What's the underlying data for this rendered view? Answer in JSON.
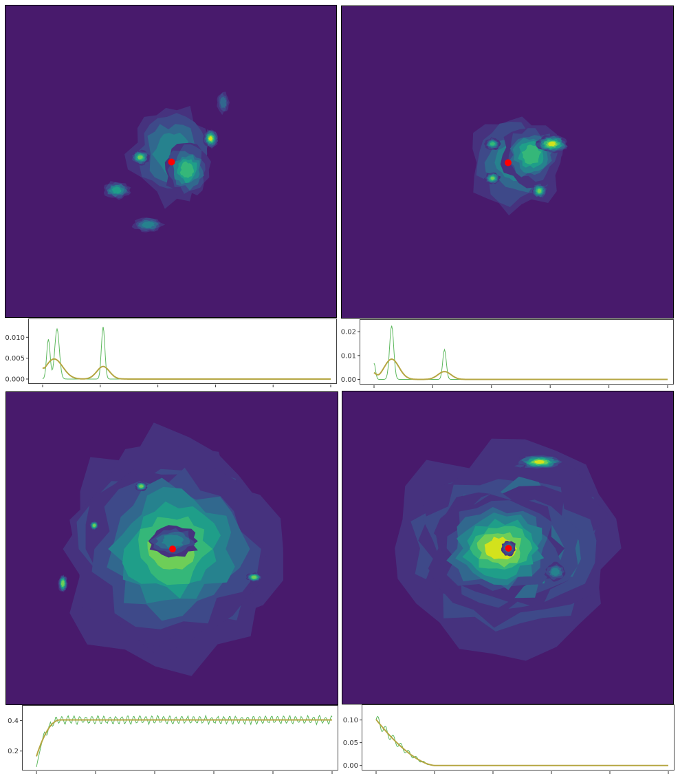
{
  "colors": {
    "background": "#481a6c",
    "levels": [
      "#481a6c",
      "#46327e",
      "#3e4989",
      "#31688e",
      "#26828e",
      "#1f9e89",
      "#35b779",
      "#6ece58",
      "#d3e21c"
    ],
    "center_marker": "#ff0000",
    "raw_line": "#5cb85c",
    "smooth_line": "#b5a642"
  },
  "chart_data": [
    {
      "type": "heatmap",
      "panel": "top-left",
      "contour_levels": 8,
      "center_marker": true,
      "blobs": [
        {
          "x": 0.0,
          "y": 0.05,
          "w": 0.55,
          "h": 0.65,
          "level": 4
        },
        {
          "x": 0.1,
          "y": -0.05,
          "w": 0.3,
          "h": 0.35,
          "level": 6
        },
        {
          "x": 0.25,
          "y": 0.15,
          "w": 0.1,
          "h": 0.12,
          "level": 8
        },
        {
          "x": -0.2,
          "y": 0.03,
          "w": 0.12,
          "h": 0.1,
          "level": 7
        },
        {
          "x": -0.35,
          "y": -0.18,
          "w": 0.18,
          "h": 0.12,
          "level": 5
        },
        {
          "x": -0.15,
          "y": -0.4,
          "w": 0.2,
          "h": 0.1,
          "level": 4
        },
        {
          "x": 0.33,
          "y": 0.38,
          "w": 0.08,
          "h": 0.15,
          "level": 3
        }
      ]
    },
    {
      "type": "line",
      "panel": "top-left-profile",
      "ylim": [
        -0.0005,
        0.0135
      ],
      "yticks": [
        0.0,
        0.005,
        0.01
      ],
      "ytick_labels": [
        "0.000",
        "0.005",
        "0.010"
      ],
      "xlim": [
        0,
        100
      ],
      "xticks": [
        0,
        20,
        40,
        60,
        80,
        100
      ],
      "peaks_raw": [
        [
          2,
          0.0095,
          0.6
        ],
        [
          5,
          0.012,
          0.8
        ],
        [
          21,
          0.0125,
          0.6
        ]
      ],
      "peaks_smooth": [
        [
          4,
          0.0048,
          3.0
        ],
        [
          21,
          0.003,
          2.2
        ]
      ],
      "baseline_smooth": 0.0027
    },
    {
      "type": "heatmap",
      "panel": "top-right",
      "contour_levels": 8,
      "center_marker": true,
      "blobs": [
        {
          "x": 0.05,
          "y": 0.0,
          "w": 0.6,
          "h": 0.65,
          "level": 4
        },
        {
          "x": 0.15,
          "y": 0.05,
          "w": 0.4,
          "h": 0.4,
          "level": 6
        },
        {
          "x": 0.28,
          "y": 0.12,
          "w": 0.22,
          "h": 0.12,
          "level": 8
        },
        {
          "x": 0.2,
          "y": -0.18,
          "w": 0.1,
          "h": 0.1,
          "level": 7
        },
        {
          "x": -0.1,
          "y": -0.1,
          "w": 0.1,
          "h": 0.08,
          "level": 7
        },
        {
          "x": -0.1,
          "y": 0.12,
          "w": 0.1,
          "h": 0.08,
          "level": 6
        }
      ]
    },
    {
      "type": "line",
      "panel": "top-right-profile",
      "ylim": [
        -0.001,
        0.0235
      ],
      "yticks": [
        0.0,
        0.01,
        0.02
      ],
      "ytick_labels": [
        "0.00",
        "0.01",
        "0.02"
      ],
      "xlim": [
        0,
        100
      ],
      "xticks": [
        0,
        20,
        40,
        60,
        80,
        100
      ],
      "peaks_raw": [
        [
          0,
          0.0068,
          0.5
        ],
        [
          6,
          0.0225,
          0.7
        ],
        [
          24,
          0.0125,
          0.6
        ]
      ],
      "peaks_smooth": [
        [
          6,
          0.0085,
          2.5
        ],
        [
          24,
          0.0033,
          2.2
        ]
      ],
      "baseline_smooth": 0.0029
    },
    {
      "type": "heatmap",
      "panel": "bottom-left",
      "contour_levels": 8,
      "center_marker": true,
      "blobs": [
        {
          "x": 0.0,
          "y": 0.0,
          "w": 1.55,
          "h": 1.5,
          "level": 4
        },
        {
          "x": 0.0,
          "y": 0.0,
          "w": 1.35,
          "h": 1.3,
          "level": 6
        },
        {
          "x": 0.0,
          "y": 0.0,
          "w": 1.2,
          "h": 1.15,
          "level": 7
        },
        {
          "x": 0.0,
          "y": 0.05,
          "w": 0.35,
          "h": 0.2,
          "level": 4
        },
        {
          "x": 0.52,
          "y": -0.18,
          "w": 0.1,
          "h": 0.06,
          "level": 8
        },
        {
          "x": -0.7,
          "y": -0.22,
          "w": 0.06,
          "h": 0.12,
          "level": 8
        },
        {
          "x": -0.2,
          "y": 0.4,
          "w": 0.08,
          "h": 0.06,
          "level": 8
        },
        {
          "x": -0.5,
          "y": 0.15,
          "w": 0.06,
          "h": 0.06,
          "level": 8
        }
      ]
    },
    {
      "type": "line",
      "panel": "bottom-left-profile",
      "ylim": [
        0.09,
        0.475
      ],
      "yticks": [
        0.2,
        0.4
      ],
      "ytick_labels": [
        "0.2",
        "0.4"
      ],
      "xlim": [
        0,
        100
      ],
      "xticks": [
        0,
        20,
        40,
        60,
        80,
        100
      ],
      "plateau_smooth": 0.405,
      "start_smooth": 0.165,
      "rise_end": 8,
      "oscillation_amplitude": 0.03
    },
    {
      "type": "heatmap",
      "panel": "bottom-right",
      "contour_levels": 8,
      "center_marker": true,
      "blobs": [
        {
          "x": 0.0,
          "y": 0.0,
          "w": 1.5,
          "h": 1.4,
          "level": 4
        },
        {
          "x": 0.0,
          "y": 0.05,
          "w": 1.25,
          "h": 1.1,
          "level": 6
        },
        {
          "x": 0.0,
          "y": 0.0,
          "w": 1.0,
          "h": 0.85,
          "level": 7
        },
        {
          "x": -0.05,
          "y": 0.0,
          "w": 0.85,
          "h": 0.65,
          "level": 8
        },
        {
          "x": 0.0,
          "y": 0.0,
          "w": 0.1,
          "h": 0.1,
          "level": 4
        },
        {
          "x": 0.3,
          "y": -0.15,
          "w": 0.14,
          "h": 0.12,
          "level": 4
        },
        {
          "x": 0.2,
          "y": 0.55,
          "w": 0.3,
          "h": 0.1,
          "level": 8
        }
      ]
    },
    {
      "type": "line",
      "panel": "bottom-right-profile",
      "ylim": [
        -0.005,
        0.125
      ],
      "yticks": [
        0.0,
        0.05,
        0.1
      ],
      "ytick_labels": [
        "0.00",
        "0.05",
        "0.10"
      ],
      "xlim": [
        0,
        100
      ],
      "xticks": [
        0,
        20,
        40,
        60,
        80,
        100
      ],
      "start_smooth": 0.101,
      "decay_end": 20,
      "oscillation_amplitude": 0.012
    }
  ]
}
